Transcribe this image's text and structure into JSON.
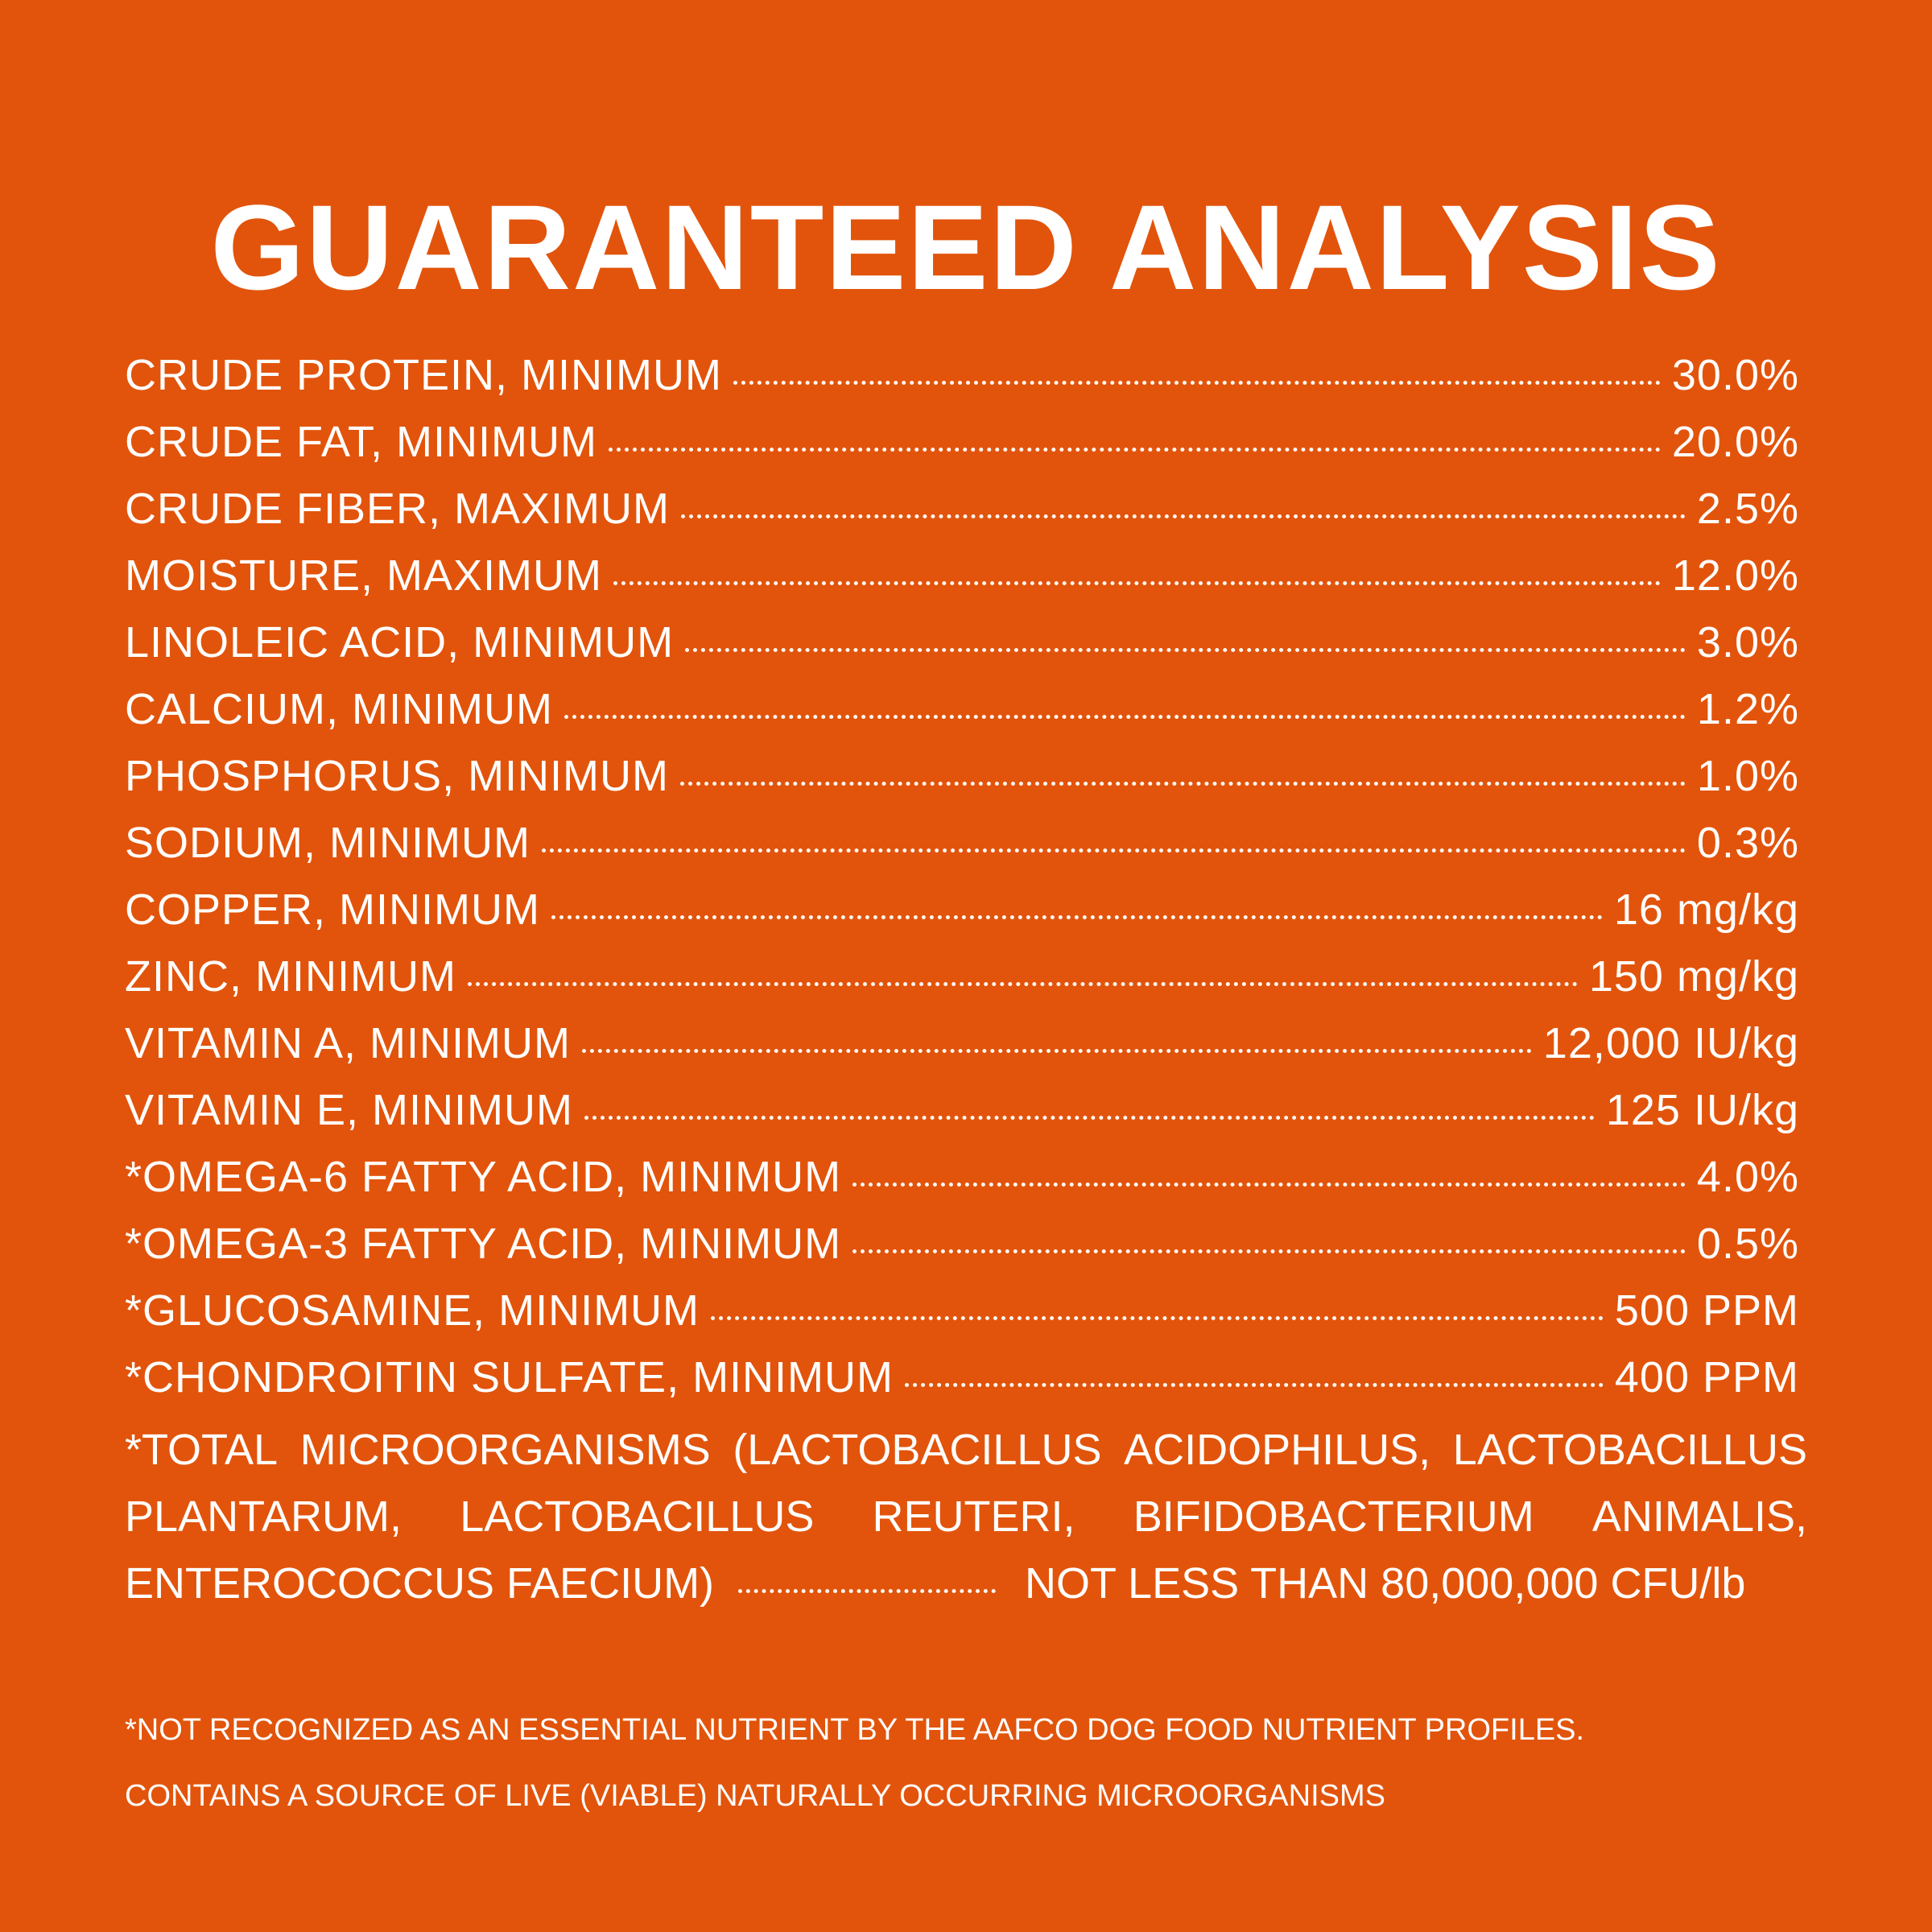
{
  "title": "GUARANTEED ANALYSIS",
  "rows": [
    {
      "label": "CRUDE PROTEIN, MINIMUM",
      "value": "30.0%"
    },
    {
      "label": "CRUDE FAT, MINIMUM",
      "value": "20.0%"
    },
    {
      "label": "CRUDE FIBER, MAXIMUM",
      "value": "2.5%"
    },
    {
      "label": "MOISTURE, MAXIMUM",
      "value": "12.0%"
    },
    {
      "label": "LINOLEIC ACID, MINIMUM",
      "value": "3.0%"
    },
    {
      "label": "CALCIUM, MINIMUM",
      "value": "1.2%"
    },
    {
      "label": "PHOSPHORUS, MINIMUM",
      "value": "1.0%"
    },
    {
      "label": "SODIUM, MINIMUM",
      "value": "0.3%"
    },
    {
      "label": "COPPER, MINIMUM",
      "value": "16 mg/kg"
    },
    {
      "label": "ZINC, MINIMUM",
      "value": "150 mg/kg"
    },
    {
      "label": "VITAMIN A, MINIMUM",
      "value": "12,000 IU/kg"
    },
    {
      "label": "VITAMIN E, MINIMUM",
      "value": "125 IU/kg"
    },
    {
      "label": "*OMEGA-6 FATTY ACID, MINIMUM",
      "value": "4.0%"
    },
    {
      "label": "*OMEGA-3 FATTY ACID, MINIMUM",
      "value": "0.5%"
    },
    {
      "label": "*GLUCOSAMINE, MINIMUM",
      "value": "500 PPM"
    },
    {
      "label": "*CHONDROITIN SULFATE, MINIMUM",
      "value": "400 PPM"
    }
  ],
  "microorganisms": {
    "line1": [
      "*TOTAL",
      "MICROORGANISMS",
      "(LACTOBACILLUS",
      "ACIDOPHILUS,",
      "LACTOBACILLUS"
    ],
    "line2": [
      "PLANTARUM,",
      "LACTOBACILLUS",
      "REUTERI,",
      "BIFIDOBACTERIUM",
      "ANIMALIS,"
    ],
    "line3_label": "ENTEROCOCCUS FAECIUM)",
    "value": "NOT LESS THAN 80,000,000 CFU/lb"
  },
  "notes": [
    "*NOT RECOGNIZED AS AN ESSENTIAL NUTRIENT BY THE AAFCO DOG FOOD NUTRIENT PROFILES.",
    "CONTAINS A SOURCE OF LIVE (VIABLE) NATURALLY OCCURRING MICROORGANISMS"
  ],
  "colors": {
    "background": "#e2540b",
    "text": "#ffffff"
  }
}
